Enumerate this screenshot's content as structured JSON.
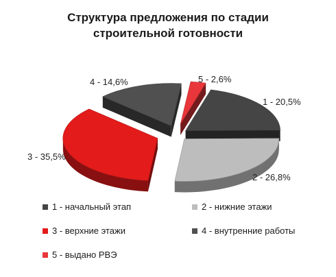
{
  "chart_data": {
    "type": "pie",
    "title_lines": [
      "Структура предложения по стадии",
      "строительной готовности"
    ],
    "slices": [
      {
        "label": "1 - 20,5%",
        "legend": "1 - начальный этап",
        "value": 20.5,
        "color": "#454545"
      },
      {
        "label": "2 - 26,8%",
        "legend": "2 - нижние этажи",
        "value": 26.8,
        "color": "#bdbdbd"
      },
      {
        "label": "3 - 35,5%",
        "legend": "3 - верхние этажи",
        "value": 35.5,
        "color": "#e31b1b"
      },
      {
        "label": "4 - 14,6%",
        "legend": "4 - внутренние работы",
        "value": 14.6,
        "color": "#505050"
      },
      {
        "label": "5 - 2,6%",
        "legend": "5 - выдано РВЭ",
        "value": 2.6,
        "color": "#e8363a"
      }
    ],
    "legend_placement": "bottom",
    "style": "3d-exploded"
  }
}
